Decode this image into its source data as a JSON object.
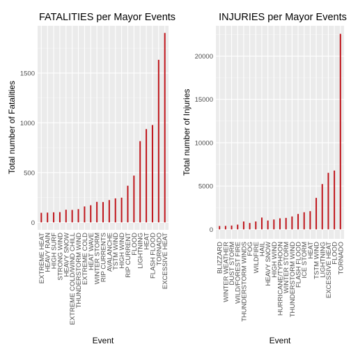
{
  "colors": {
    "panel": "#ebebeb",
    "grid_major": "#ffffff",
    "grid_minor": "#f5f5f5",
    "bar": "#c0151b",
    "tick_text": "#4d4d4d"
  },
  "chart_data": [
    {
      "type": "bar",
      "title": "FATALITIES per Mayor Events",
      "xlabel": "Event",
      "ylabel": "Total number of Fatalities",
      "ylim": [
        -75,
        1975
      ],
      "yticks": [
        0,
        500,
        1000,
        1500
      ],
      "grid": true,
      "categories": [
        "EXTREME HEAT",
        "HEAVY RAIN",
        "HIGH SURF",
        "STRONG WIND",
        "HEAVY SNOW",
        "EXTREME COLD/WIND CHILL",
        "THUNDERSTORM WIND",
        "EXTREME COLD",
        "HEAT WAVE",
        "WINTER STORM",
        "RIP CURRENTS",
        "AVALANCHE",
        "TSTM WIND",
        "HIGH WIND",
        "RIP CURRENT",
        "FLOOD",
        "LIGHTNING",
        "HEAT",
        "FLASH FLOOD",
        "TORNADO",
        "EXCESSIVE HEAT"
      ],
      "values": [
        96,
        98,
        101,
        103,
        127,
        125,
        133,
        160,
        172,
        206,
        204,
        224,
        241,
        248,
        368,
        470,
        816,
        937,
        978,
        1633,
        1903
      ]
    },
    {
      "type": "bar",
      "title": "INJURIES per Mayor Events",
      "xlabel": "Event",
      "ylabel": "Total number of Injuries",
      "ylim": [
        -1100,
        23500
      ],
      "yticks": [
        0,
        5000,
        10000,
        15000,
        20000
      ],
      "grid": true,
      "categories": [
        "BLIZZARD",
        "WINTER WEATHER",
        "DUST STORM",
        "WILD/FOREST FIRE",
        "THUNDERSTORM WINDS",
        "FOG",
        "WILDFIRE",
        "HAIL",
        "HEAVY SNOW",
        "HIGH WIND",
        "HURRICANE/TYPHOON",
        "WINTER STORM",
        "THUNDERSTORM WIND",
        "FLASH FLOOD",
        "ICE STORM",
        "HEAT",
        "TSTM WIND",
        "LIGHTNING",
        "EXCESSIVE HEAT",
        "FLOOD",
        "TORNADO"
      ],
      "values": [
        385,
        398,
        440,
        545,
        908,
        734,
        911,
        1361,
        1021,
        1137,
        1275,
        1321,
        1488,
        1777,
        1975,
        2100,
        3631,
        5230,
        6525,
        6789,
        22571
      ]
    }
  ]
}
